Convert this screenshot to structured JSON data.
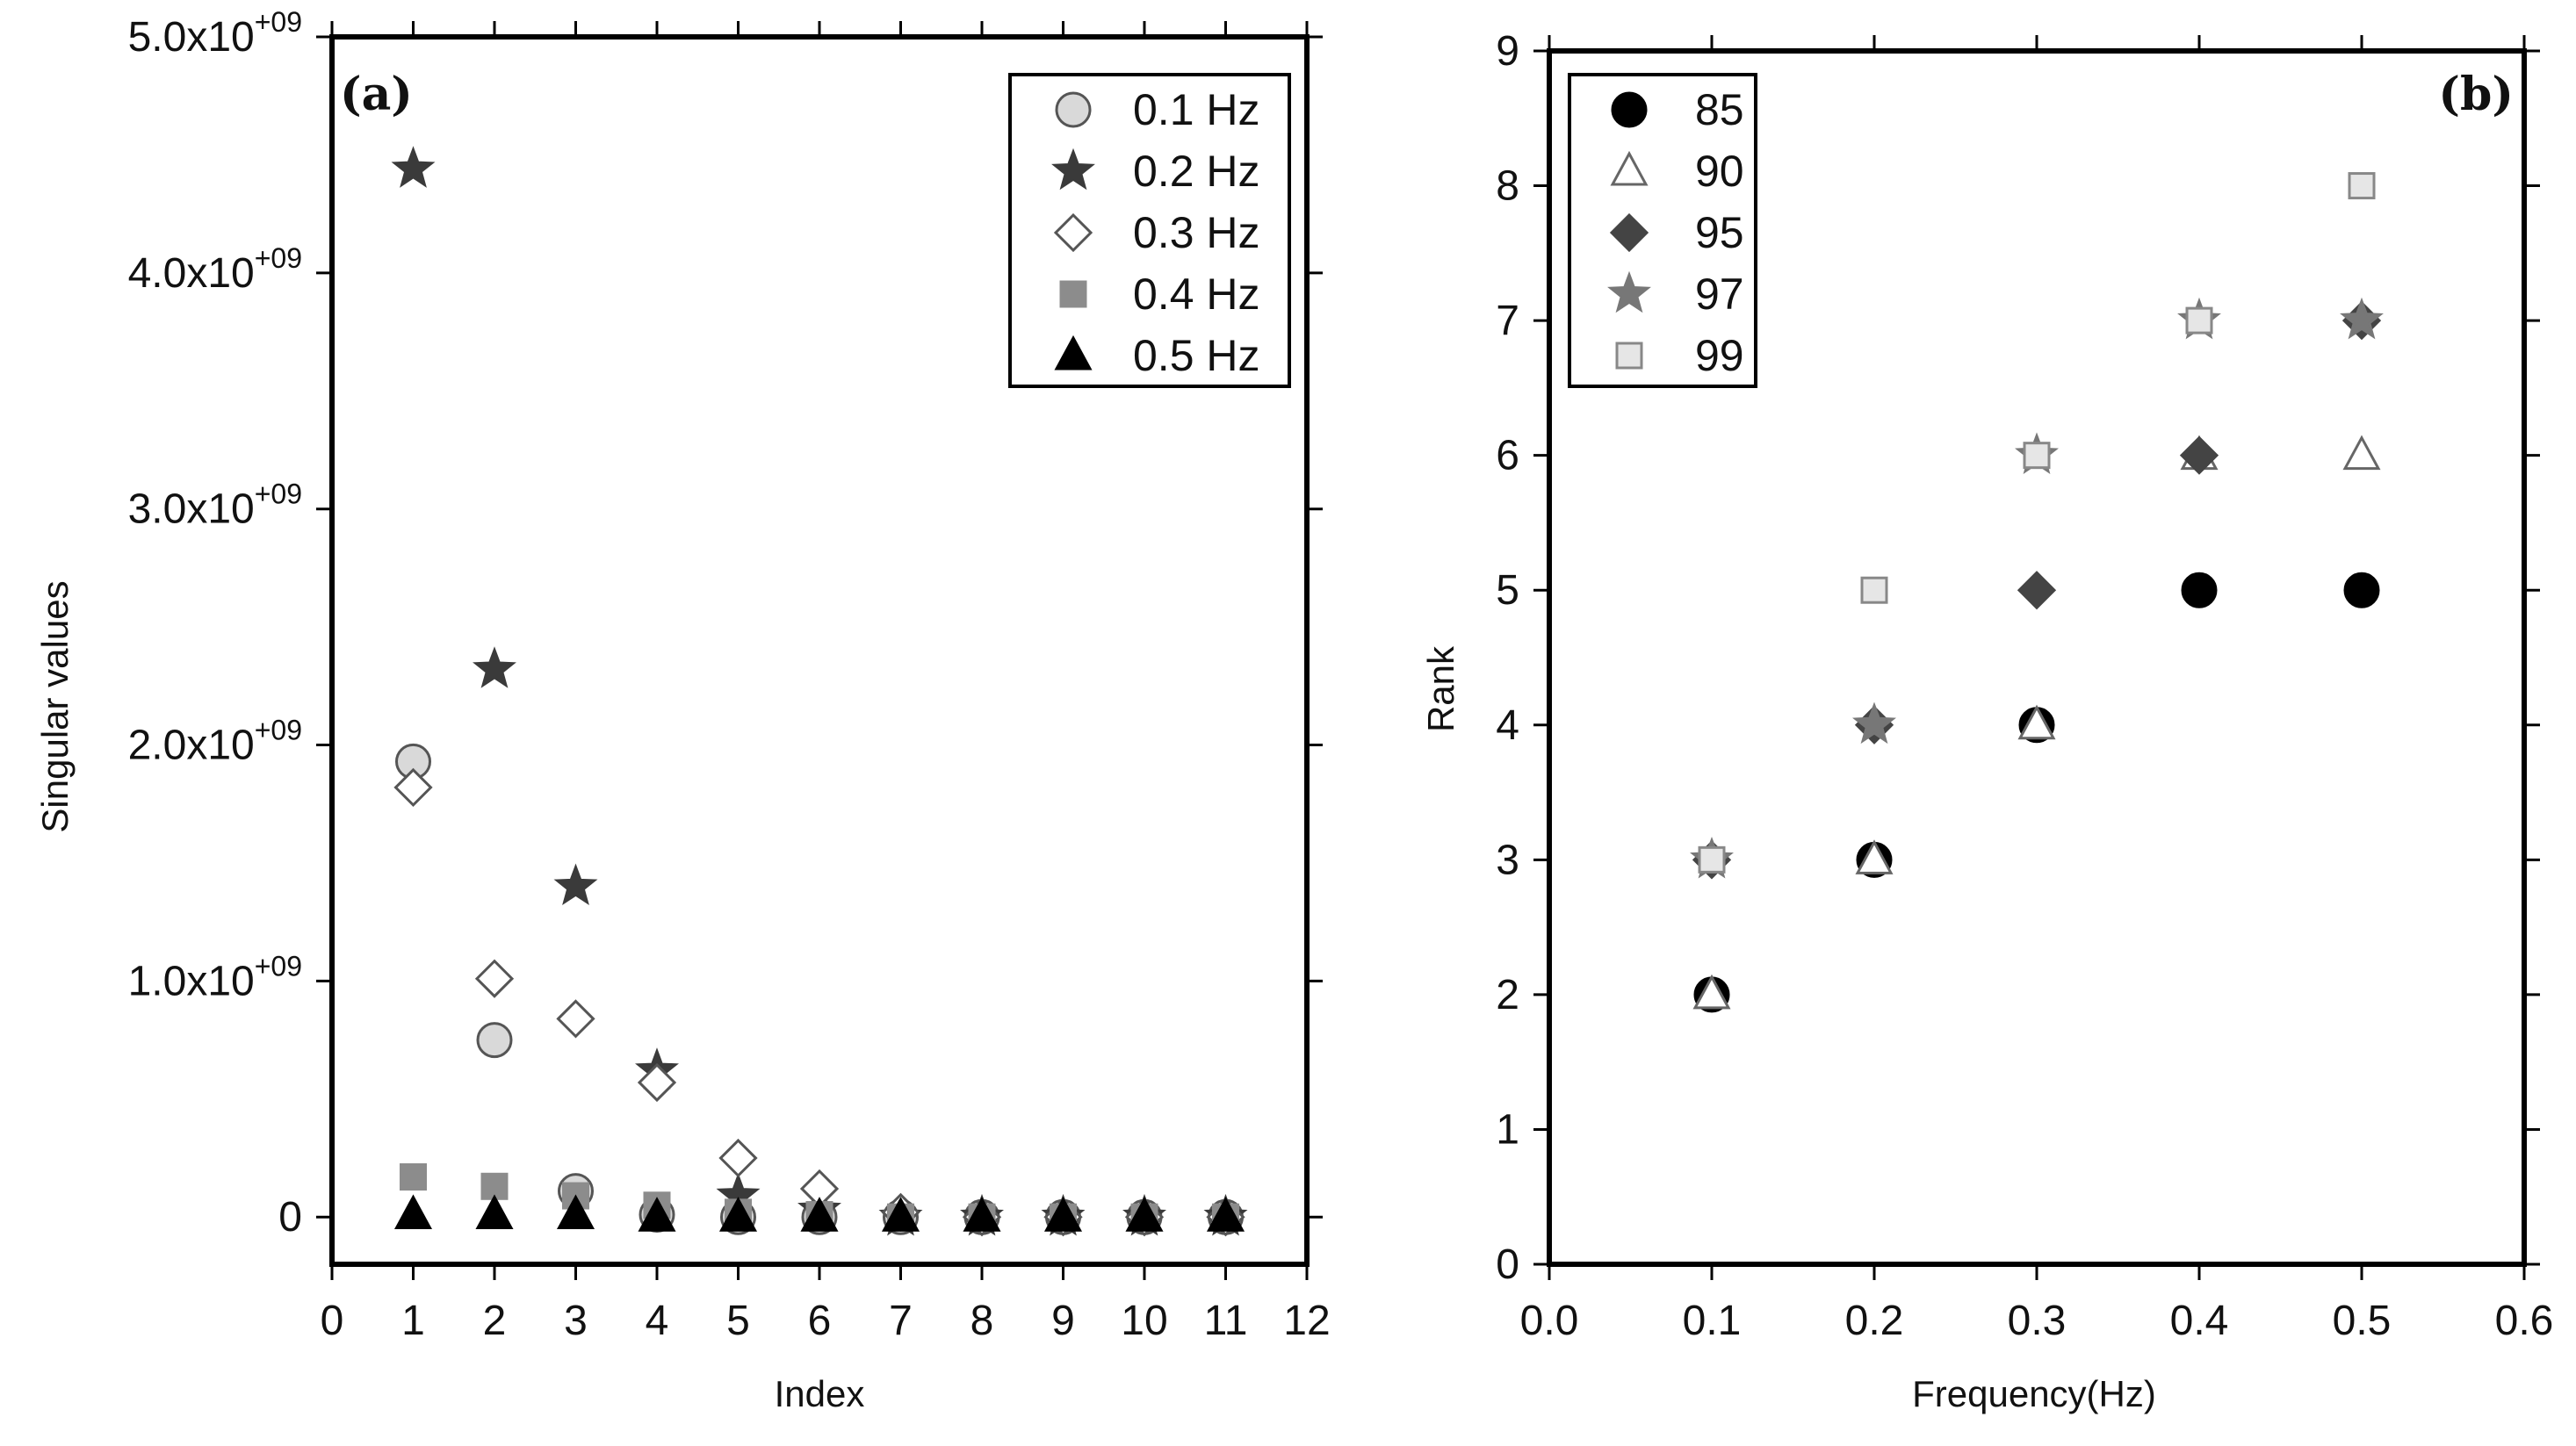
{
  "chart_data": [
    {
      "type": "scatter",
      "panel_label": "(a)",
      "xlabel": "Index",
      "ylabel": "Singular values",
      "xlim": [
        0,
        12
      ],
      "ylim": [
        -200000000,
        5000000000
      ],
      "x_ticks": [
        0,
        1,
        2,
        3,
        4,
        5,
        6,
        7,
        8,
        9,
        10,
        11,
        12
      ],
      "x_tick_labels": [
        "0",
        "1",
        "2",
        "3",
        "4",
        "5",
        "6",
        "7",
        "8",
        "9",
        "10",
        "11",
        "12"
      ],
      "y_ticks": [
        0,
        1000000000,
        2000000000,
        3000000000,
        4000000000,
        5000000000
      ],
      "y_tick_labels": [
        {
          "mantissa": "0",
          "exp": ""
        },
        {
          "mantissa": "1.0x10",
          "exp": "+09"
        },
        {
          "mantissa": "2.0x10",
          "exp": "+09"
        },
        {
          "mantissa": "3.0x10",
          "exp": "+09"
        },
        {
          "mantissa": "4.0x10",
          "exp": "+09"
        },
        {
          "mantissa": "5.0x10",
          "exp": "+09"
        }
      ],
      "legend_position": "top-right",
      "series": [
        {
          "name": "0.1 Hz",
          "marker": "circle",
          "fill": "#d9d9d9",
          "stroke": "#555555",
          "x": [
            1,
            2,
            3,
            4,
            5,
            6,
            7,
            8,
            9,
            10,
            11
          ],
          "values": [
            1930000000,
            750000000,
            110000000,
            10000000,
            0,
            0,
            0,
            0,
            0,
            0,
            0
          ]
        },
        {
          "name": "0.2 Hz",
          "marker": "star",
          "fill": "#3a3a3a",
          "stroke": "#3a3a3a",
          "x": [
            1,
            2,
            3,
            4,
            5,
            6,
            7,
            8,
            9,
            10,
            11
          ],
          "values": [
            4440000000,
            2320000000,
            1400000000,
            620000000,
            90000000,
            30000000,
            0,
            0,
            0,
            0,
            0
          ]
        },
        {
          "name": "0.3 Hz",
          "marker": "diamond",
          "fill": "#ffffff",
          "stroke": "#555555",
          "x": [
            1,
            2,
            3,
            4,
            5,
            6,
            7,
            8,
            9,
            10,
            11
          ],
          "values": [
            1820000000,
            1010000000,
            840000000,
            570000000,
            250000000,
            120000000,
            20000000,
            0,
            0,
            0,
            0
          ]
        },
        {
          "name": "0.4 Hz",
          "marker": "square",
          "fill": "#8c8c8c",
          "stroke": "#8c8c8c",
          "x": [
            1,
            2,
            3,
            4,
            5,
            6,
            7,
            8,
            9,
            10,
            11
          ],
          "values": [
            170000000,
            130000000,
            90000000,
            50000000,
            20000000,
            10000000,
            0,
            0,
            0,
            0,
            0
          ]
        },
        {
          "name": "0.5 Hz",
          "marker": "triangle",
          "fill": "#000000",
          "stroke": "#000000",
          "x": [
            1,
            2,
            3,
            4,
            5,
            6,
            7,
            8,
            9,
            10,
            11
          ],
          "values": [
            10000000,
            10000000,
            10000000,
            0,
            0,
            0,
            0,
            0,
            0,
            0,
            0
          ]
        }
      ]
    },
    {
      "type": "scatter",
      "panel_label": "(b)",
      "xlabel": "Frequency(Hz)",
      "ylabel": "Rank",
      "xlim": [
        0,
        0.6
      ],
      "ylim": [
        0,
        9
      ],
      "x_ticks": [
        0,
        0.1,
        0.2,
        0.3,
        0.4,
        0.5,
        0.6
      ],
      "x_tick_labels": [
        "0.0",
        "0.1",
        "0.2",
        "0.3",
        "0.4",
        "0.5",
        "0.6"
      ],
      "y_ticks": [
        0,
        1,
        2,
        3,
        4,
        5,
        6,
        7,
        8,
        9
      ],
      "y_tick_labels": [
        "0",
        "1",
        "2",
        "3",
        "4",
        "5",
        "6",
        "7",
        "8",
        "9"
      ],
      "legend_position": "top-left",
      "series": [
        {
          "name": "85",
          "marker": "circle",
          "fill": "#000000",
          "stroke": "#000000",
          "x": [
            0.1,
            0.2,
            0.3,
            0.4,
            0.5
          ],
          "values": [
            2,
            3,
            4,
            5,
            5
          ]
        },
        {
          "name": "90",
          "marker": "triangle",
          "fill": "#ffffff",
          "stroke": "#666666",
          "x": [
            0.1,
            0.2,
            0.3,
            0.4,
            0.5
          ],
          "values": [
            2,
            3,
            4,
            6,
            6
          ]
        },
        {
          "name": "95",
          "marker": "diamond",
          "fill": "#444444",
          "stroke": "#444444",
          "x": [
            0.1,
            0.2,
            0.3,
            0.4,
            0.5
          ],
          "values": [
            3,
            4,
            5,
            6,
            7
          ]
        },
        {
          "name": "97",
          "marker": "star",
          "fill": "#777777",
          "stroke": "#777777",
          "x": [
            0.1,
            0.2,
            0.3,
            0.4,
            0.5
          ],
          "values": [
            3,
            4,
            6,
            7,
            7
          ]
        },
        {
          "name": "99",
          "marker": "square",
          "fill": "#e6e6e6",
          "stroke": "#888888",
          "x": [
            0.1,
            0.2,
            0.3,
            0.4,
            0.5
          ],
          "values": [
            3,
            5,
            6,
            7,
            8
          ]
        }
      ]
    }
  ]
}
